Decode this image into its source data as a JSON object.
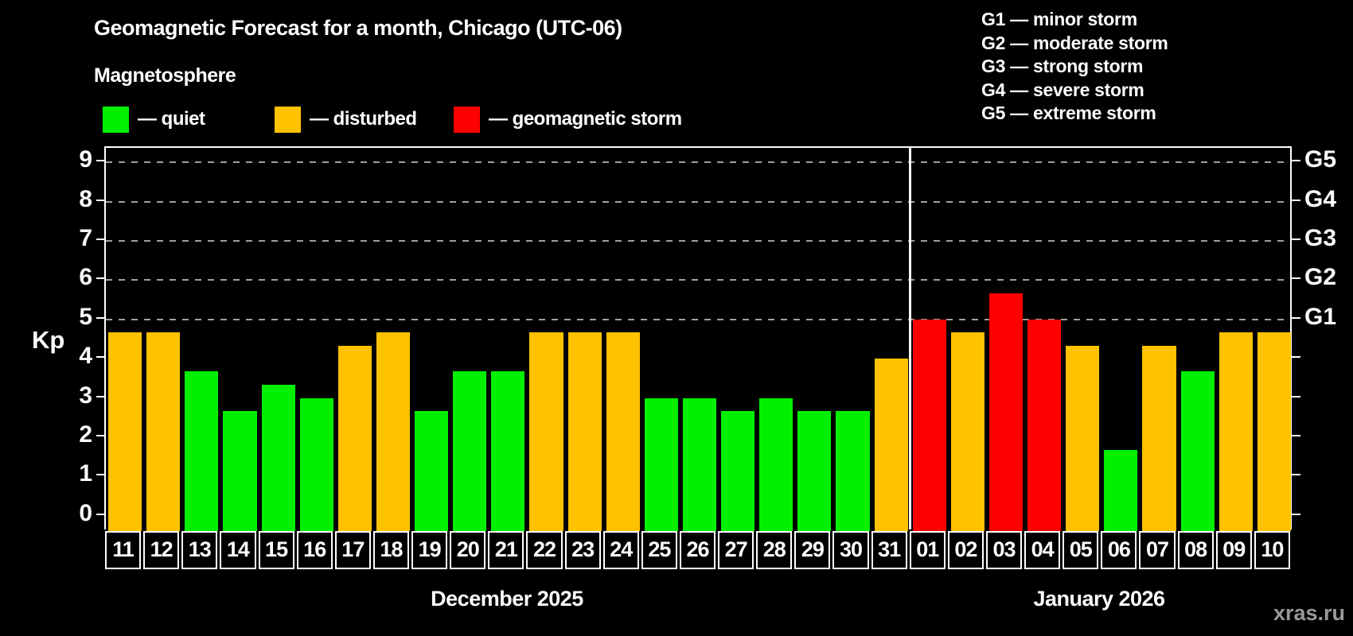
{
  "title": "Geomagnetic Forecast for a month, Chicago (UTC-06)",
  "subtitle": "Magnetosphere",
  "watermark": "xras.ru",
  "colors": {
    "quiet": "#00f000",
    "disturbed": "#ffc200",
    "storm": "#ff0000",
    "grid": "#a0a0a0",
    "axis": "#ffffff",
    "background": "#000000",
    "watermark_gray": "#9a9a9a"
  },
  "legend": {
    "items": [
      {
        "key": "quiet",
        "label": "— quiet"
      },
      {
        "key": "disturbed",
        "label": "— disturbed"
      },
      {
        "key": "storm",
        "label": "— geomagnetic storm"
      }
    ]
  },
  "g_scale_legend": [
    "G1 — minor storm",
    "G2 — moderate storm",
    "G3 — strong storm",
    "G4 — severe storm",
    "G5 — extreme storm"
  ],
  "chart_data": {
    "type": "bar",
    "ylabel": "Kp",
    "ylim": [
      -0.39,
      9.37
    ],
    "yticks": [
      0,
      1,
      2,
      3,
      4,
      5,
      6,
      7,
      8,
      9
    ],
    "grid_kp": [
      5,
      6,
      7,
      8,
      9
    ],
    "legend_position": "top-left",
    "right_axis_labels": [
      {
        "kp": 5,
        "label": "G1"
      },
      {
        "kp": 6,
        "label": "G2"
      },
      {
        "kp": 7,
        "label": "G3"
      },
      {
        "kp": 8,
        "label": "G4"
      },
      {
        "kp": 9,
        "label": "G5"
      }
    ],
    "months": [
      {
        "label": "December 2025",
        "days": [
          {
            "day": "11",
            "kp": 4.67,
            "level": "disturbed"
          },
          {
            "day": "12",
            "kp": 4.67,
            "level": "disturbed"
          },
          {
            "day": "13",
            "kp": 3.67,
            "level": "quiet"
          },
          {
            "day": "14",
            "kp": 2.67,
            "level": "quiet"
          },
          {
            "day": "15",
            "kp": 3.33,
            "level": "quiet"
          },
          {
            "day": "16",
            "kp": 3.0,
            "level": "quiet"
          },
          {
            "day": "17",
            "kp": 4.33,
            "level": "disturbed"
          },
          {
            "day": "18",
            "kp": 4.67,
            "level": "disturbed"
          },
          {
            "day": "19",
            "kp": 2.67,
            "level": "quiet"
          },
          {
            "day": "20",
            "kp": 3.67,
            "level": "quiet"
          },
          {
            "day": "21",
            "kp": 3.67,
            "level": "quiet"
          },
          {
            "day": "22",
            "kp": 4.67,
            "level": "disturbed"
          },
          {
            "day": "23",
            "kp": 4.67,
            "level": "disturbed"
          },
          {
            "day": "24",
            "kp": 4.67,
            "level": "disturbed"
          },
          {
            "day": "25",
            "kp": 3.0,
            "level": "quiet"
          },
          {
            "day": "26",
            "kp": 3.0,
            "level": "quiet"
          },
          {
            "day": "27",
            "kp": 2.67,
            "level": "quiet"
          },
          {
            "day": "28",
            "kp": 3.0,
            "level": "quiet"
          },
          {
            "day": "29",
            "kp": 2.67,
            "level": "quiet"
          },
          {
            "day": "30",
            "kp": 2.67,
            "level": "quiet"
          },
          {
            "day": "31",
            "kp": 4.0,
            "level": "disturbed"
          }
        ]
      },
      {
        "label": "January 2026",
        "days": [
          {
            "day": "01",
            "kp": 5.0,
            "level": "storm"
          },
          {
            "day": "02",
            "kp": 4.67,
            "level": "disturbed"
          },
          {
            "day": "03",
            "kp": 5.67,
            "level": "storm"
          },
          {
            "day": "04",
            "kp": 5.0,
            "level": "storm"
          },
          {
            "day": "05",
            "kp": 4.33,
            "level": "disturbed"
          },
          {
            "day": "06",
            "kp": 1.67,
            "level": "quiet"
          },
          {
            "day": "07",
            "kp": 4.33,
            "level": "disturbed"
          },
          {
            "day": "08",
            "kp": 3.67,
            "level": "quiet"
          },
          {
            "day": "09",
            "kp": 4.67,
            "level": "disturbed"
          },
          {
            "day": "10",
            "kp": 4.67,
            "level": "disturbed"
          }
        ]
      }
    ]
  }
}
